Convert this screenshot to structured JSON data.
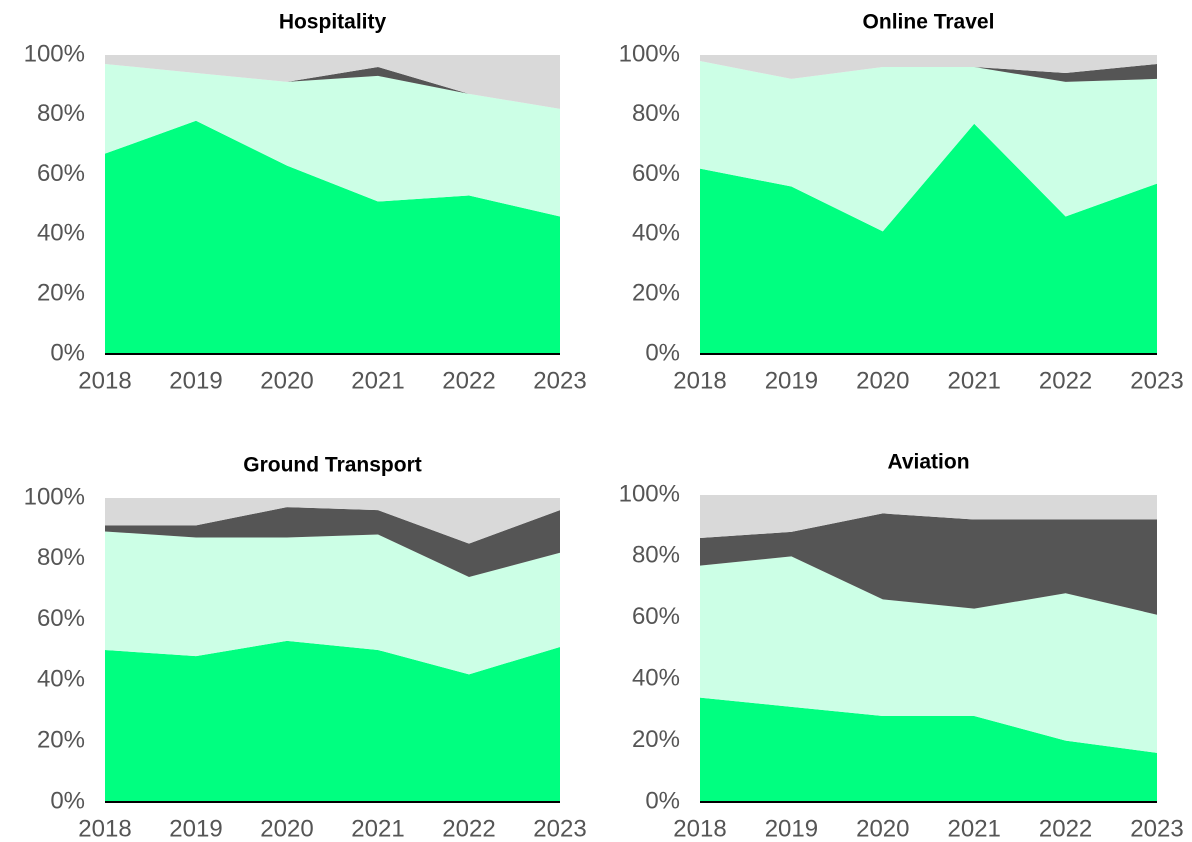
{
  "chart_data": [
    {
      "type": "stacked_area",
      "title": "Hospitality",
      "categories": [
        "2018",
        "2019",
        "2020",
        "2021",
        "2022",
        "2023"
      ],
      "series": [
        {
          "color": "#00ff80",
          "values": [
            67,
            78,
            63,
            51,
            53,
            46
          ]
        },
        {
          "color": "#ccffe6",
          "values": [
            30,
            16,
            28,
            42,
            34,
            36
          ]
        },
        {
          "color": "#555555",
          "values": [
            0,
            0,
            0,
            3,
            0,
            0
          ]
        },
        {
          "color": "#d9d9d9",
          "values": [
            3,
            6,
            9,
            4,
            13,
            18
          ]
        }
      ],
      "ylim": [
        0,
        100
      ],
      "yticks": [
        {
          "value": 0,
          "label": "0%"
        },
        {
          "value": 20,
          "label": "20%"
        },
        {
          "value": 40,
          "label": "40%"
        },
        {
          "value": 60,
          "label": "60%"
        },
        {
          "value": 80,
          "label": "80%"
        },
        {
          "value": 100,
          "label": "100%"
        }
      ]
    },
    {
      "type": "stacked_area",
      "title": "Online Travel",
      "categories": [
        "2018",
        "2019",
        "2020",
        "2021",
        "2022",
        "2023"
      ],
      "series": [
        {
          "color": "#00ff80",
          "values": [
            62,
            56,
            41,
            77,
            46,
            57
          ]
        },
        {
          "color": "#ccffe6",
          "values": [
            36,
            36,
            55,
            19,
            45,
            35
          ]
        },
        {
          "color": "#555555",
          "values": [
            0,
            0,
            0,
            0,
            3,
            5
          ]
        },
        {
          "color": "#d9d9d9",
          "values": [
            2,
            8,
            4,
            4,
            6,
            3
          ]
        }
      ],
      "ylim": [
        0,
        100
      ],
      "yticks": [
        {
          "value": 0,
          "label": "0%"
        },
        {
          "value": 20,
          "label": "20%"
        },
        {
          "value": 40,
          "label": "40%"
        },
        {
          "value": 60,
          "label": "60%"
        },
        {
          "value": 80,
          "label": "80%"
        },
        {
          "value": 100,
          "label": "100%"
        }
      ]
    },
    {
      "type": "stacked_area",
      "title": "Ground Transport",
      "categories": [
        "2018",
        "2019",
        "2020",
        "2021",
        "2022",
        "2023"
      ],
      "series": [
        {
          "color": "#00ff80",
          "values": [
            50,
            48,
            53,
            50,
            42,
            51
          ]
        },
        {
          "color": "#ccffe6",
          "values": [
            39,
            39,
            34,
            38,
            32,
            31
          ]
        },
        {
          "color": "#555555",
          "values": [
            2,
            4,
            10,
            8,
            11,
            14
          ]
        },
        {
          "color": "#d9d9d9",
          "values": [
            9,
            9,
            3,
            4,
            15,
            4
          ]
        }
      ],
      "ylim": [
        0,
        100
      ],
      "yticks": [
        {
          "value": 0,
          "label": "0%"
        },
        {
          "value": 20,
          "label": "20%"
        },
        {
          "value": 40,
          "label": "40%"
        },
        {
          "value": 60,
          "label": "60%"
        },
        {
          "value": 80,
          "label": "80%"
        },
        {
          "value": 100,
          "label": "100%"
        }
      ]
    },
    {
      "type": "stacked_area",
      "title": "Aviation",
      "categories": [
        "2018",
        "2019",
        "2020",
        "2021",
        "2022",
        "2023"
      ],
      "series": [
        {
          "color": "#00ff80",
          "values": [
            34,
            31,
            28,
            28,
            20,
            16
          ]
        },
        {
          "color": "#ccffe6",
          "values": [
            43,
            49,
            38,
            35,
            48,
            45
          ]
        },
        {
          "color": "#555555",
          "values": [
            9,
            8,
            28,
            29,
            24,
            31
          ]
        },
        {
          "color": "#d9d9d9",
          "values": [
            14,
            12,
            6,
            8,
            8,
            8
          ]
        }
      ],
      "ylim": [
        0,
        100
      ],
      "yticks": [
        {
          "value": 0,
          "label": "0%"
        },
        {
          "value": 20,
          "label": "20%"
        },
        {
          "value": 40,
          "label": "40%"
        },
        {
          "value": 60,
          "label": "60%"
        },
        {
          "value": 80,
          "label": "80%"
        },
        {
          "value": 100,
          "label": "100%"
        }
      ]
    }
  ]
}
